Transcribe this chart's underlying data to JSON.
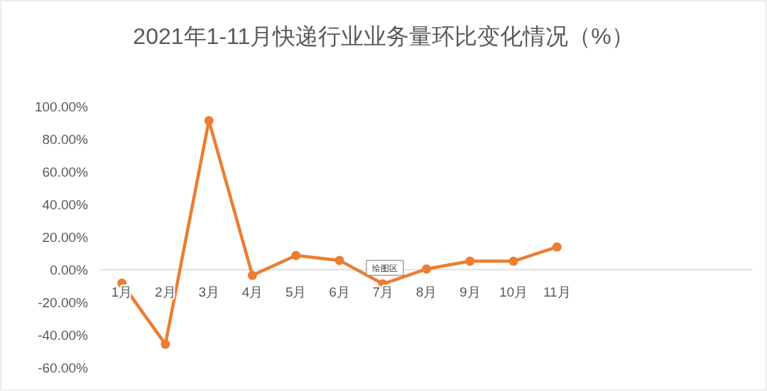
{
  "chart_data": {
    "type": "line",
    "title": "2021年1-11月快递行业业务量环比变化情况（%）",
    "categories": [
      "1月",
      "2月",
      "3月",
      "4月",
      "5月",
      "6月",
      "7月",
      "8月",
      "9月",
      "10月",
      "11月",
      null,
      null,
      null,
      null
    ],
    "series": [
      {
        "color": "#ed7d31",
        "values": [
          -8.3,
          -45.7,
          91.3,
          -3.5,
          8.7,
          5.7,
          -8.7,
          0.4,
          5.2,
          5.2,
          13.9,
          null,
          null,
          null,
          null
        ]
      }
    ],
    "ylim": [
      -60,
      100
    ],
    "yticks": [
      {
        "value": -60,
        "label": "-60.00%"
      },
      {
        "value": -40,
        "label": "-40.00%"
      },
      {
        "value": -20,
        "label": "-20.00%"
      },
      {
        "value": 0,
        "label": "0.00%"
      },
      {
        "value": 20,
        "label": "20.00%"
      },
      {
        "value": 40,
        "label": "40.00%"
      },
      {
        "value": 60,
        "label": "60.00%"
      },
      {
        "value": 80,
        "label": "80.00%"
      },
      {
        "value": 100,
        "label": "100.00%"
      }
    ],
    "grid": false,
    "marker": "circle",
    "line_style": "solid",
    "annotations": [
      "绘图区"
    ]
  }
}
